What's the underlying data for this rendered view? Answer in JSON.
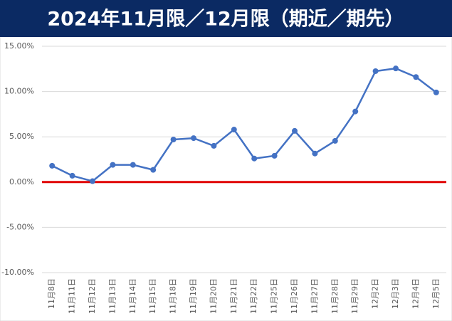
{
  "chart_data": {
    "type": "line",
    "title": "2024年11月限／12月限（期近／期先）",
    "categories": [
      "11月8日",
      "11月11日",
      "11月12日",
      "11月13日",
      "11月14日",
      "11月15日",
      "11月18日",
      "11月19日",
      "11月20日",
      "11月21日",
      "11月22日",
      "11月25日",
      "11月26日",
      "11月27日",
      "11月28日",
      "11月29日",
      "12月2日",
      "12月3日",
      "12月4日",
      "12月5日"
    ],
    "series": [
      {
        "color": "#4472c4",
        "values": [
          1.8,
          0.7,
          0.1,
          1.9,
          1.9,
          1.35,
          4.7,
          4.85,
          4.0,
          5.8,
          2.6,
          2.9,
          5.65,
          3.15,
          4.55,
          7.8,
          12.25,
          12.55,
          11.6,
          9.9
        ]
      }
    ],
    "ylim": [
      -10,
      15
    ],
    "yticks": [
      {
        "value": 15,
        "label": "15.00%"
      },
      {
        "value": 10,
        "label": "10.00%"
      },
      {
        "value": 5,
        "label": "5.00%"
      },
      {
        "value": 0,
        "label": "0.00%"
      },
      {
        "value": -5,
        "label": "-5.00%"
      },
      {
        "value": -10,
        "label": "-10.00%"
      }
    ],
    "grid": true,
    "reference_line": {
      "value": 0,
      "color": "#e00000"
    }
  }
}
